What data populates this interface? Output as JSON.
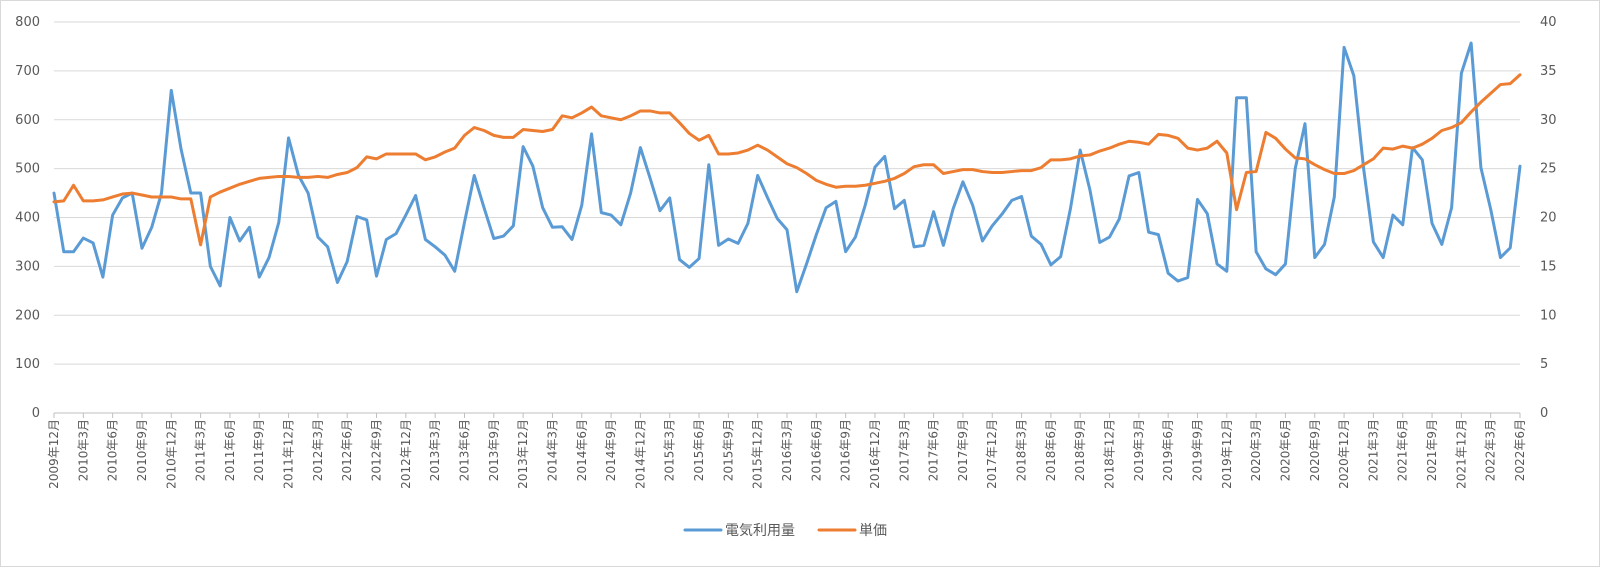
{
  "chart_data": {
    "type": "line",
    "title": "",
    "xlabel": "",
    "ylabel_left": "",
    "ylabel_right": "",
    "y_left_range": [
      0,
      800
    ],
    "y_left_ticks": [
      "0",
      "100",
      "200",
      "300",
      "400",
      "500",
      "600",
      "700",
      "800"
    ],
    "y_right_range": [
      0,
      40
    ],
    "y_right_ticks": [
      "0",
      "5",
      "10",
      "15",
      "20",
      "25",
      "30",
      "35",
      "40"
    ],
    "grid": true,
    "legend_position": "bottom",
    "x_tick_labels": [
      "2009年12月",
      "2010年3月",
      "2010年6月",
      "2010年9月",
      "2010年12月",
      "2011年3月",
      "2011年6月",
      "2011年9月",
      "2011年12月",
      "2012年3月",
      "2012年6月",
      "2012年9月",
      "2012年12月",
      "2013年3月",
      "2013年6月",
      "2013年9月",
      "2013年12月",
      "2014年3月",
      "2014年6月",
      "2014年9月",
      "2014年12月",
      "2015年3月",
      "2015年6月",
      "2015年9月",
      "2015年12月",
      "2016年3月",
      "2016年6月",
      "2016年9月",
      "2016年12月",
      "2017年3月",
      "2017年6月",
      "2017年9月",
      "2017年12月",
      "2018年3月",
      "2018年6月",
      "2018年9月",
      "2018年12月",
      "2019年3月",
      "2019年6月",
      "2019年9月",
      "2019年12月",
      "2020年3月",
      "2020年6月",
      "2020年9月",
      "2020年12月",
      "2021年3月",
      "2021年6月",
      "2021年9月",
      "2021年12月",
      "2022年3月",
      "2022年6月"
    ],
    "series": [
      {
        "name": "電気利用量",
        "axis": "left",
        "color": "#5b9bd5",
        "values": [
          450,
          330,
          330,
          358,
          348,
          278,
          405,
          440,
          450,
          337,
          380,
          450,
          660,
          540,
          450,
          450,
          300,
          260,
          400,
          352,
          380,
          278,
          318,
          390,
          563,
          487,
          450,
          360,
          340,
          267,
          310,
          402,
          395,
          280,
          355,
          367,
          405,
          445,
          355,
          340,
          323,
          290,
          390,
          486,
          420,
          357,
          362,
          383,
          545,
          505,
          420,
          380,
          381,
          355,
          425,
          571,
          410,
          405,
          385,
          450,
          543,
          480,
          414,
          440,
          314,
          298,
          316,
          508,
          343,
          356,
          347,
          388,
          486,
          441,
          398,
          375,
          248,
          305,
          365,
          420,
          433,
          330,
          360,
          425,
          503,
          525,
          418,
          435,
          340,
          343,
          412,
          343,
          418,
          473,
          425,
          352,
          383,
          407,
          435,
          443,
          362,
          345,
          303,
          320,
          418,
          538,
          456,
          349,
          360,
          397,
          485,
          492,
          370,
          365,
          286,
          270,
          277,
          437,
          408,
          305,
          290,
          645,
          645,
          330,
          295,
          283,
          305,
          500,
          592,
          318,
          345,
          442,
          748,
          690,
          500,
          350,
          318,
          405,
          385,
          543,
          518,
          388,
          345,
          420,
          695,
          757,
          502,
          417,
          318,
          338,
          505
        ]
      },
      {
        "name": "単価",
        "axis": "right",
        "color": "#ed7d31",
        "values": [
          21.6,
          21.7,
          23.3,
          21.7,
          21.7,
          21.8,
          22.1,
          22.4,
          22.5,
          22.3,
          22.1,
          22.1,
          22.1,
          21.9,
          21.9,
          17.2,
          22.1,
          22.6,
          23.0,
          23.4,
          23.7,
          24.0,
          24.1,
          24.2,
          24.2,
          24.1,
          24.1,
          24.2,
          24.1,
          24.4,
          24.6,
          25.1,
          26.2,
          26.0,
          26.5,
          26.5,
          26.5,
          26.5,
          25.9,
          26.2,
          26.7,
          27.1,
          28.4,
          29.2,
          28.9,
          28.4,
          28.2,
          28.2,
          29.0,
          28.9,
          28.8,
          29.0,
          30.4,
          30.2,
          30.7,
          31.3,
          30.4,
          30.2,
          30.0,
          30.4,
          30.9,
          30.9,
          30.7,
          30.7,
          29.7,
          28.6,
          27.9,
          28.4,
          26.5,
          26.5,
          26.6,
          26.9,
          27.4,
          26.9,
          26.2,
          25.5,
          25.1,
          24.5,
          23.8,
          23.4,
          23.1,
          23.2,
          23.2,
          23.3,
          23.5,
          23.7,
          24.0,
          24.5,
          25.2,
          25.4,
          25.4,
          24.5,
          24.7,
          24.9,
          24.9,
          24.7,
          24.6,
          24.6,
          24.7,
          24.8,
          24.8,
          25.1,
          25.9,
          25.9,
          26.0,
          26.3,
          26.4,
          26.8,
          27.1,
          27.5,
          27.8,
          27.7,
          27.5,
          28.5,
          28.4,
          28.1,
          27.1,
          26.9,
          27.1,
          27.8,
          26.6,
          20.8,
          24.6,
          24.7,
          28.7,
          28.1,
          27.0,
          26.1,
          26.0,
          25.4,
          24.9,
          24.5,
          24.5,
          24.8,
          25.4,
          26.0,
          27.1,
          27.0,
          27.3,
          27.1,
          27.5,
          28.1,
          28.9,
          29.2,
          29.7,
          30.8,
          31.8,
          32.7,
          33.6,
          33.7,
          34.6
        ]
      }
    ]
  }
}
